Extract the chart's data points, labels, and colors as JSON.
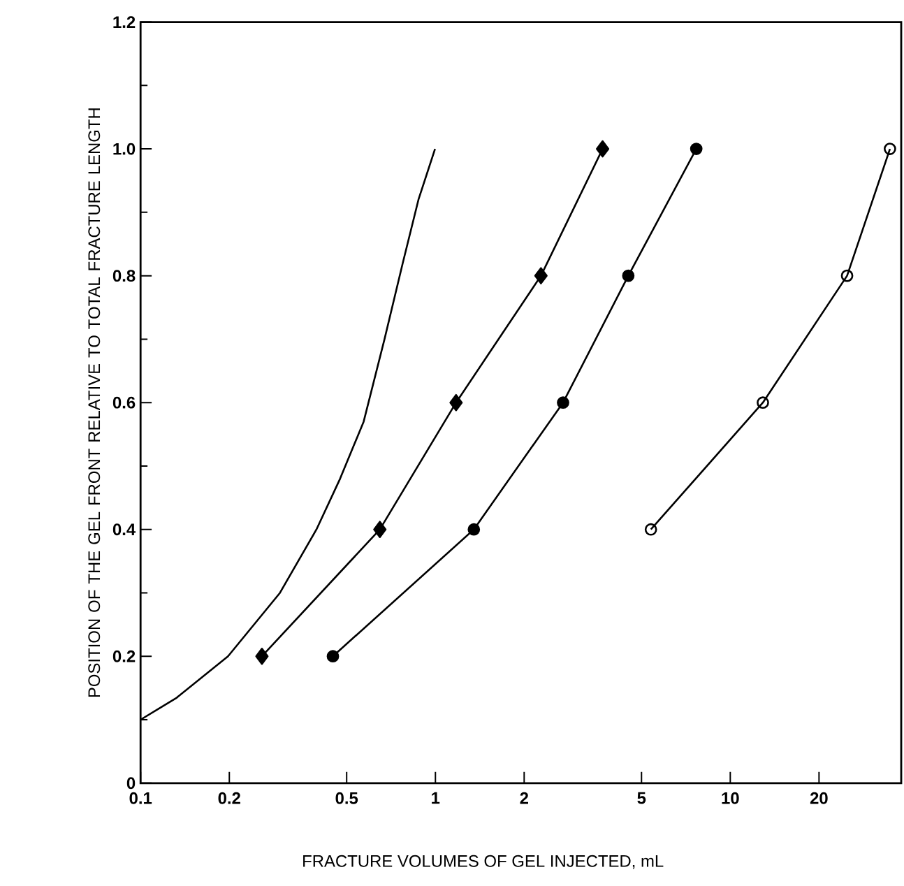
{
  "chart_data": {
    "type": "line",
    "xlabel": "FRACTURE VOLUMES OF GEL INJECTED, mL",
    "ylabel": "POSITION OF THE GEL FRONT RELATIVE TO TOTAL FRACTURE LENGTH",
    "log": "x",
    "xlim": [
      0.1,
      38
    ],
    "ylim": [
      0,
      1.2
    ],
    "xticks": [
      0.1,
      0.2,
      0.5,
      1,
      2,
      5,
      10,
      20
    ],
    "yticks": [
      0,
      0.2,
      0.4,
      0.6,
      0.8,
      {
        "value": 1.0,
        "label": "1.0"
      },
      1.2
    ],
    "grid": false,
    "line_style": "solid",
    "series": [
      {
        "color": "#000000",
        "marker": "none",
        "x": [
          0.1,
          0.132,
          0.198,
          0.297,
          0.395,
          0.475,
          0.571,
          0.672,
          0.775,
          0.876,
          0.997
        ],
        "values": [
          0.1,
          0.134,
          0.2,
          0.3,
          0.4,
          0.48,
          0.57,
          0.7,
          0.82,
          0.92,
          1.0
        ]
      },
      {
        "color": "#000000",
        "marker": "diamond",
        "x": [
          0.258,
          0.648,
          1.175,
          2.28,
          3.69
        ],
        "values": [
          0.2,
          0.4,
          0.6,
          0.8,
          1.0
        ]
      },
      {
        "color": "#000000",
        "marker": "circle",
        "x": [
          0.449,
          1.35,
          2.71,
          4.51,
          7.67
        ],
        "values": [
          0.2,
          0.4,
          0.6,
          0.8,
          1.0
        ]
      },
      {
        "color": "#000000",
        "marker": "open circle",
        "x": [
          5.38,
          12.9,
          24.9,
          34.8
        ],
        "values": [
          0.4,
          0.6,
          0.8,
          1.0
        ]
      }
    ]
  }
}
